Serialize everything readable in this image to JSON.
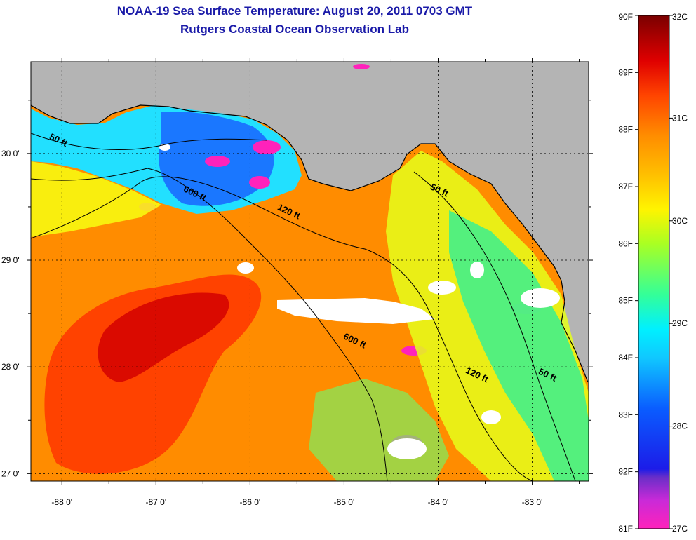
{
  "header": {
    "title": "NOAA-19 Sea Surface Temperature:  August 20, 2011 0703 GMT",
    "subtitle": "Rutgers Coastal Ocean Observation Lab"
  },
  "map": {
    "lon_range": [
      -88.33,
      -82.4
    ],
    "lat_range": [
      26.93,
      30.86
    ],
    "lon_ticks": [
      {
        "value": -88,
        "label": "-88 0'"
      },
      {
        "value": -87,
        "label": "-87 0'"
      },
      {
        "value": -86,
        "label": "-86 0'"
      },
      {
        "value": -85,
        "label": "-85 0'"
      },
      {
        "value": -84,
        "label": "-84 0'"
      },
      {
        "value": -83,
        "label": "-83 0'"
      }
    ],
    "lat_ticks": [
      {
        "value": 30,
        "label": "30 0'"
      },
      {
        "value": 29,
        "label": "29 0'"
      },
      {
        "value": 28,
        "label": "28 0'"
      },
      {
        "value": 27,
        "label": "27 0'"
      }
    ],
    "land_color": "#b4b4b4",
    "cloud_color": "#ffffff",
    "grid": "dotted",
    "contours": [
      {
        "label": "50 ft",
        "lon": -88.05,
        "lat": 30.1
      },
      {
        "label": "50 ft",
        "lon": -84.0,
        "lat": 29.63
      },
      {
        "label": "50 ft",
        "lon": -82.85,
        "lat": 27.9
      },
      {
        "label": "120 ft",
        "lon": -85.6,
        "lat": 29.43
      },
      {
        "label": "120 ft",
        "lon": -83.6,
        "lat": 27.9
      },
      {
        "label": "600 ft",
        "lon": -86.6,
        "lat": 29.6
      },
      {
        "label": "600 ft",
        "lon": -84.9,
        "lat": 28.22
      }
    ]
  },
  "colorbar": {
    "min_f": 81,
    "max_f": 90,
    "min_c": 27,
    "max_c": 32,
    "labels_f": [
      "90F",
      "89F",
      "88F",
      "87F",
      "86F",
      "85F",
      "84F",
      "83F",
      "82F",
      "81F"
    ],
    "labels_c": [
      "32C",
      "31C",
      "30C",
      "29C",
      "28C",
      "27C"
    ],
    "stops": [
      {
        "f": 81.0,
        "color": "#ff22bb"
      },
      {
        "f": 81.5,
        "color": "#c92ad8"
      },
      {
        "f": 81.9,
        "color": "#6a2ec8"
      },
      {
        "f": 82.05,
        "color": "#1c1ce8"
      },
      {
        "f": 83.1,
        "color": "#0a5cff"
      },
      {
        "f": 84.0,
        "color": "#10c8ff"
      },
      {
        "f": 84.5,
        "color": "#00f0ff"
      },
      {
        "f": 85.1,
        "color": "#33ff99"
      },
      {
        "f": 86.0,
        "color": "#aaff22"
      },
      {
        "f": 86.6,
        "color": "#fff400"
      },
      {
        "f": 87.2,
        "color": "#ffc000"
      },
      {
        "f": 87.9,
        "color": "#ff8c00"
      },
      {
        "f": 88.6,
        "color": "#ff4400"
      },
      {
        "f": 89.2,
        "color": "#e00000"
      },
      {
        "f": 90.0,
        "color": "#7a0000"
      }
    ]
  }
}
